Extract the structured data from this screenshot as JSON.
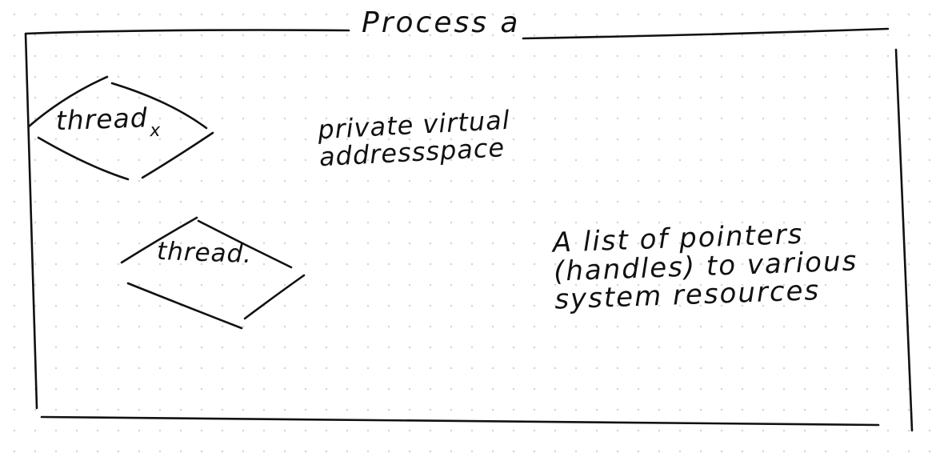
{
  "diagram": {
    "title": "Process a",
    "threads": [
      {
        "label": "thread",
        "subscript": "x"
      },
      {
        "label": "thread.",
        "subscript": ""
      }
    ],
    "notes": [
      {
        "lines": [
          "private virtual",
          "addressspace"
        ]
      },
      {
        "lines": [
          "A list of pointers",
          "(handles) to various",
          "system resources"
        ]
      }
    ],
    "colors": {
      "ink": "#111111",
      "paper": "#ffffff",
      "grid_dots": "#d4d4d4"
    }
  }
}
